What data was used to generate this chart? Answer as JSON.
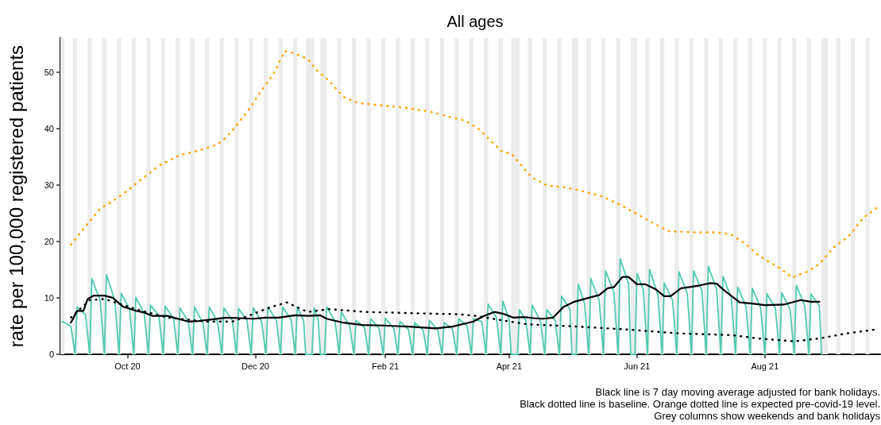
{
  "chart_data": {
    "type": "line",
    "title": "All ages",
    "ylabel": "rate per 100,000 registered patients",
    "xlim": [
      "2020-08-30",
      "2021-09-25"
    ],
    "xticks": [
      {
        "value": "2020-10-01",
        "label": "Oct 20"
      },
      {
        "value": "2020-12-01",
        "label": "Dec 20"
      },
      {
        "value": "2021-02-01",
        "label": "Feb 21"
      },
      {
        "value": "2021-04-01",
        "label": "Apr 21"
      },
      {
        "value": "2021-06-01",
        "label": "Jun 21"
      },
      {
        "value": "2021-08-01",
        "label": "Aug 21"
      }
    ],
    "ylim": [
      0,
      56
    ],
    "yticks": [
      0,
      10,
      20,
      30,
      40,
      50
    ],
    "grid": false,
    "marker": "none",
    "series": [
      {
        "color": "#4fcab2",
        "line_style": "solid",
        "x": [
          "2020-08-31",
          "2020-09-04",
          "2020-09-06",
          "2020-09-07",
          "2020-09-11",
          "2020-09-13",
          "2020-09-14",
          "2020-09-18",
          "2020-09-20",
          "2020-09-21",
          "2020-09-25",
          "2020-09-27",
          "2020-09-28",
          "2020-10-02",
          "2020-10-04",
          "2020-10-05",
          "2020-10-09",
          "2020-10-11",
          "2020-10-12",
          "2020-10-16",
          "2020-10-18",
          "2020-10-19",
          "2020-10-23",
          "2020-10-25",
          "2020-10-26",
          "2020-10-30",
          "2020-11-01",
          "2020-11-02",
          "2020-11-06",
          "2020-11-08",
          "2020-11-09",
          "2020-11-13",
          "2020-11-15",
          "2020-11-16",
          "2020-11-20",
          "2020-11-22",
          "2020-11-23",
          "2020-11-27",
          "2020-11-29",
          "2020-11-30",
          "2020-12-04",
          "2020-12-06",
          "2020-12-07",
          "2020-12-11",
          "2020-12-13",
          "2020-12-14",
          "2020-12-18",
          "2020-12-20",
          "2020-12-21",
          "2020-12-24",
          "2020-12-25",
          "2020-12-28",
          "2020-12-29",
          "2020-12-31",
          "2021-01-01",
          "2021-01-03",
          "2021-01-04",
          "2021-01-08",
          "2021-01-10",
          "2021-01-11",
          "2021-01-15",
          "2021-01-17",
          "2021-01-18",
          "2021-01-22",
          "2021-01-24",
          "2021-01-25",
          "2021-01-29",
          "2021-01-31",
          "2021-02-01",
          "2021-02-05",
          "2021-02-07",
          "2021-02-08",
          "2021-02-12",
          "2021-02-14",
          "2021-02-15",
          "2021-02-19",
          "2021-02-21",
          "2021-02-22",
          "2021-02-26",
          "2021-02-28",
          "2021-03-01",
          "2021-03-05",
          "2021-03-07",
          "2021-03-08",
          "2021-03-12",
          "2021-03-14",
          "2021-03-15",
          "2021-03-19",
          "2021-03-21",
          "2021-03-22",
          "2021-03-26",
          "2021-03-28",
          "2021-03-29",
          "2021-04-01",
          "2021-04-02",
          "2021-04-05",
          "2021-04-06",
          "2021-04-09",
          "2021-04-11",
          "2021-04-12",
          "2021-04-16",
          "2021-04-18",
          "2021-04-19",
          "2021-04-23",
          "2021-04-25",
          "2021-04-26",
          "2021-04-30",
          "2021-05-01",
          "2021-05-03",
          "2021-05-04",
          "2021-05-07",
          "2021-05-09",
          "2021-05-10",
          "2021-05-14",
          "2021-05-16",
          "2021-05-17",
          "2021-05-21",
          "2021-05-23",
          "2021-05-24",
          "2021-05-28",
          "2021-05-29",
          "2021-05-31",
          "2021-06-01",
          "2021-06-04",
          "2021-06-06",
          "2021-06-07",
          "2021-06-11",
          "2021-06-13",
          "2021-06-14",
          "2021-06-18",
          "2021-06-20",
          "2021-06-21",
          "2021-06-25",
          "2021-06-27",
          "2021-06-28",
          "2021-07-02",
          "2021-07-04",
          "2021-07-05",
          "2021-07-09",
          "2021-07-11",
          "2021-07-12",
          "2021-07-16",
          "2021-07-18",
          "2021-07-19",
          "2021-07-23",
          "2021-07-25",
          "2021-07-26",
          "2021-07-30",
          "2021-08-01",
          "2021-08-02",
          "2021-08-06",
          "2021-08-08",
          "2021-08-09",
          "2021-08-13",
          "2021-08-15",
          "2021-08-16",
          "2021-08-20",
          "2021-08-22",
          "2021-08-23",
          "2021-08-27",
          "2021-08-28"
        ],
        "values": [
          5.8,
          5.0,
          0,
          8.4,
          7.0,
          0,
          13.4,
          9.5,
          0,
          14.1,
          9.5,
          0,
          10.8,
          8.0,
          0,
          10.1,
          7.2,
          0,
          8.7,
          6.8,
          0,
          8.5,
          6.3,
          0,
          8.2,
          5.8,
          0,
          8.4,
          5.5,
          0,
          8.4,
          5.6,
          0,
          8.2,
          6.0,
          0,
          8.1,
          6.0,
          0,
          8.2,
          5.8,
          0,
          8.4,
          6.0,
          0,
          8.4,
          6.2,
          0,
          8.4,
          6.0,
          0,
          0,
          8.2,
          6.0,
          0,
          0,
          8.4,
          5.8,
          0,
          7.5,
          5.0,
          0,
          6.0,
          4.8,
          0,
          6.3,
          4.6,
          0,
          6.4,
          4.6,
          0,
          5.8,
          4.4,
          0,
          5.6,
          4.3,
          0,
          6.0,
          4.3,
          0,
          5.6,
          4.5,
          0,
          6.3,
          5.0,
          0,
          6.3,
          5.8,
          0,
          8.9,
          6.5,
          0,
          9.4,
          6.2,
          0,
          0,
          7.9,
          6.0,
          0,
          8.7,
          5.8,
          0,
          7.9,
          6.0,
          0,
          10.3,
          8.0,
          0,
          0,
          12.4,
          9.0,
          0,
          13.4,
          9.5,
          0,
          14.8,
          11.0,
          0,
          16.9,
          12.5,
          0,
          0,
          14.3,
          11.5,
          0,
          15.0,
          10.5,
          0,
          12.6,
          9.5,
          0,
          14.6,
          10.8,
          0,
          14.8,
          11.2,
          0,
          15.6,
          11.5,
          0,
          13.8,
          10.0,
          0,
          11.9,
          8.5,
          0,
          11.7,
          8.2,
          0,
          10.7,
          8.2,
          0,
          10.9,
          8.0,
          0,
          12.2,
          8.6,
          0,
          10.7,
          8.5,
          0
        ]
      },
      {
        "color": "#000000",
        "line_style": "solid",
        "x": [
          "2020-09-04",
          "2020-09-07",
          "2020-09-10",
          "2020-09-12",
          "2020-09-15",
          "2020-09-20",
          "2020-09-24",
          "2020-09-29",
          "2020-10-01",
          "2020-10-05",
          "2020-10-09",
          "2020-10-13",
          "2020-10-20",
          "2020-10-25",
          "2020-10-30",
          "2020-11-04",
          "2020-11-11",
          "2020-11-17",
          "2020-11-24",
          "2020-11-30",
          "2020-12-06",
          "2020-12-12",
          "2020-12-20",
          "2020-12-26",
          "2021-01-01",
          "2021-01-04",
          "2021-01-12",
          "2021-01-21",
          "2021-01-31",
          "2021-02-12",
          "2021-02-25",
          "2021-03-05",
          "2021-03-15",
          "2021-03-20",
          "2021-03-25",
          "2021-03-29",
          "2021-04-03",
          "2021-04-08",
          "2021-04-13",
          "2021-04-17",
          "2021-04-22",
          "2021-04-27",
          "2021-05-02",
          "2021-05-09",
          "2021-05-14",
          "2021-05-18",
          "2021-05-21",
          "2021-05-25",
          "2021-05-28",
          "2021-06-01",
          "2021-06-05",
          "2021-06-10",
          "2021-06-14",
          "2021-06-17",
          "2021-06-22",
          "2021-06-26",
          "2021-07-01",
          "2021-07-06",
          "2021-07-09",
          "2021-07-13",
          "2021-07-20",
          "2021-07-26",
          "2021-08-01",
          "2021-08-10",
          "2021-08-18",
          "2021-08-23",
          "2021-08-27"
        ],
        "values": [
          5.6,
          7.7,
          7.7,
          9.8,
          10.4,
          10.4,
          10.0,
          8.4,
          8.2,
          7.7,
          7.4,
          6.8,
          6.8,
          6.3,
          5.8,
          5.9,
          6.2,
          6.5,
          6.4,
          6.3,
          6.5,
          6.5,
          6.9,
          6.8,
          6.9,
          6.3,
          5.6,
          5.2,
          5.1,
          4.9,
          4.6,
          4.9,
          5.8,
          6.8,
          7.5,
          7.2,
          6.5,
          6.6,
          6.4,
          6.3,
          6.5,
          8.4,
          9.3,
          10.0,
          10.5,
          11.7,
          11.9,
          13.7,
          13.7,
          12.4,
          12.4,
          11.5,
          10.3,
          10.3,
          11.7,
          11.9,
          12.2,
          12.6,
          12.5,
          11.2,
          9.2,
          9.0,
          8.7,
          8.8,
          9.6,
          9.3,
          9.3
        ]
      },
      {
        "color": "#000000",
        "line_style": "dotted",
        "x": [
          "2020-09-04",
          "2020-09-13",
          "2020-09-20",
          "2020-10-05",
          "2020-10-20",
          "2020-10-28",
          "2020-11-08",
          "2020-11-20",
          "2020-11-27",
          "2020-12-01",
          "2020-12-08",
          "2020-12-16",
          "2020-12-20",
          "2020-12-26",
          "2021-01-05",
          "2021-01-23",
          "2021-02-23",
          "2021-03-08",
          "2021-03-16",
          "2021-03-21",
          "2021-03-29",
          "2021-04-10",
          "2021-04-29",
          "2021-05-27",
          "2021-06-21",
          "2021-07-16",
          "2021-07-29",
          "2021-08-15",
          "2021-08-27",
          "2021-09-09",
          "2021-09-23"
        ],
        "values": [
          6.5,
          9.6,
          9.8,
          8.0,
          6.5,
          6.2,
          5.8,
          5.8,
          6.7,
          7.3,
          8.3,
          9.2,
          8.5,
          7.5,
          8.0,
          7.5,
          7.2,
          7.1,
          6.8,
          6.5,
          6.0,
          5.3,
          5.0,
          4.4,
          3.7,
          3.4,
          2.8,
          2.3,
          2.8,
          3.7,
          4.4
        ]
      },
      {
        "color": "#ffa500",
        "line_style": "dotted",
        "x": [
          "2020-09-04",
          "2020-09-11",
          "2020-09-18",
          "2020-09-25",
          "2020-10-01",
          "2020-10-07",
          "2020-10-16",
          "2020-10-26",
          "2020-11-03",
          "2020-11-11",
          "2020-11-15",
          "2020-11-20",
          "2020-11-27",
          "2020-12-03",
          "2020-12-10",
          "2020-12-15",
          "2020-12-19",
          "2020-12-26",
          "2020-12-30",
          "2021-01-05",
          "2021-01-12",
          "2021-01-19",
          "2021-01-30",
          "2021-02-10",
          "2021-02-22",
          "2021-03-04",
          "2021-03-11",
          "2021-03-18",
          "2021-03-23",
          "2021-03-29",
          "2021-04-02",
          "2021-04-07",
          "2021-04-12",
          "2021-04-19",
          "2021-04-27",
          "2021-05-04",
          "2021-05-15",
          "2021-05-25",
          "2021-06-05",
          "2021-06-12",
          "2021-06-16",
          "2021-06-28",
          "2021-07-09",
          "2021-07-16",
          "2021-07-23",
          "2021-07-29",
          "2021-08-08",
          "2021-08-14",
          "2021-08-21",
          "2021-08-27",
          "2021-09-03",
          "2021-09-10",
          "2021-09-17",
          "2021-09-24"
        ],
        "values": [
          19.4,
          22.7,
          25.8,
          27.4,
          29.0,
          30.8,
          33.4,
          35.3,
          36.0,
          36.9,
          37.7,
          39.6,
          42.9,
          46.2,
          49.9,
          53.7,
          53.4,
          52.3,
          50.4,
          48.5,
          45.6,
          44.5,
          44.1,
          43.7,
          43.0,
          42.0,
          41.4,
          39.8,
          37.9,
          35.8,
          35.6,
          33.4,
          31.3,
          29.9,
          29.6,
          29.1,
          28.0,
          26.3,
          24.0,
          22.6,
          21.8,
          21.6,
          21.6,
          21.2,
          19.5,
          17.5,
          15.3,
          13.6,
          14.6,
          16.0,
          19.0,
          20.9,
          24.2,
          26.1
        ]
      }
    ],
    "bands": [
      {
        "axis": "x",
        "from": "2020-08-30",
        "to": "2020-09-01",
        "color": "#ececec"
      },
      {
        "axis": "x",
        "from": "2020-09-05",
        "to": "2020-09-07",
        "color": "#ececec"
      },
      {
        "axis": "x",
        "from": "2020-09-12",
        "to": "2020-09-14",
        "color": "#ececec"
      },
      {
        "axis": "x",
        "from": "2020-09-19",
        "to": "2020-09-21",
        "color": "#ececec"
      },
      {
        "axis": "x",
        "from": "2020-09-26",
        "to": "2020-09-28",
        "color": "#ececec"
      },
      {
        "axis": "x",
        "from": "2020-10-03",
        "to": "2020-10-05",
        "color": "#ececec"
      },
      {
        "axis": "x",
        "from": "2020-10-10",
        "to": "2020-10-12",
        "color": "#ececec"
      },
      {
        "axis": "x",
        "from": "2020-10-17",
        "to": "2020-10-19",
        "color": "#ececec"
      },
      {
        "axis": "x",
        "from": "2020-10-24",
        "to": "2020-10-26",
        "color": "#ececec"
      },
      {
        "axis": "x",
        "from": "2020-10-31",
        "to": "2020-11-02",
        "color": "#ececec"
      },
      {
        "axis": "x",
        "from": "2020-11-07",
        "to": "2020-11-09",
        "color": "#ececec"
      },
      {
        "axis": "x",
        "from": "2020-11-14",
        "to": "2020-11-16",
        "color": "#ececec"
      },
      {
        "axis": "x",
        "from": "2020-11-21",
        "to": "2020-11-23",
        "color": "#ececec"
      },
      {
        "axis": "x",
        "from": "2020-11-28",
        "to": "2020-11-30",
        "color": "#ececec"
      },
      {
        "axis": "x",
        "from": "2020-12-05",
        "to": "2020-12-07",
        "color": "#ececec"
      },
      {
        "axis": "x",
        "from": "2020-12-12",
        "to": "2020-12-14",
        "color": "#ececec"
      },
      {
        "axis": "x",
        "from": "2020-12-19",
        "to": "2020-12-21",
        "color": "#ececec"
      },
      {
        "axis": "x",
        "from": "2020-12-25",
        "to": "2020-12-29",
        "color": "#ececec"
      },
      {
        "axis": "x",
        "from": "2021-01-01",
        "to": "2021-01-04",
        "color": "#ececec"
      },
      {
        "axis": "x",
        "from": "2021-01-09",
        "to": "2021-01-11",
        "color": "#ececec"
      },
      {
        "axis": "x",
        "from": "2021-01-16",
        "to": "2021-01-18",
        "color": "#ececec"
      },
      {
        "axis": "x",
        "from": "2021-01-23",
        "to": "2021-01-25",
        "color": "#ececec"
      },
      {
        "axis": "x",
        "from": "2021-01-30",
        "to": "2021-02-01",
        "color": "#ececec"
      },
      {
        "axis": "x",
        "from": "2021-02-06",
        "to": "2021-02-08",
        "color": "#ececec"
      },
      {
        "axis": "x",
        "from": "2021-02-13",
        "to": "2021-02-15",
        "color": "#ececec"
      },
      {
        "axis": "x",
        "from": "2021-02-20",
        "to": "2021-02-22",
        "color": "#ececec"
      },
      {
        "axis": "x",
        "from": "2021-02-27",
        "to": "2021-03-01",
        "color": "#ececec"
      },
      {
        "axis": "x",
        "from": "2021-03-06",
        "to": "2021-03-08",
        "color": "#ececec"
      },
      {
        "axis": "x",
        "from": "2021-03-13",
        "to": "2021-03-15",
        "color": "#ececec"
      },
      {
        "axis": "x",
        "from": "2021-03-20",
        "to": "2021-03-22",
        "color": "#ececec"
      },
      {
        "axis": "x",
        "from": "2021-03-27",
        "to": "2021-03-29",
        "color": "#ececec"
      },
      {
        "axis": "x",
        "from": "2021-04-02",
        "to": "2021-04-06",
        "color": "#ececec"
      },
      {
        "axis": "x",
        "from": "2021-04-10",
        "to": "2021-04-12",
        "color": "#ececec"
      },
      {
        "axis": "x",
        "from": "2021-04-17",
        "to": "2021-04-19",
        "color": "#ececec"
      },
      {
        "axis": "x",
        "from": "2021-04-24",
        "to": "2021-04-26",
        "color": "#ececec"
      },
      {
        "axis": "x",
        "from": "2021-05-01",
        "to": "2021-05-04",
        "color": "#ececec"
      },
      {
        "axis": "x",
        "from": "2021-05-08",
        "to": "2021-05-10",
        "color": "#ececec"
      },
      {
        "axis": "x",
        "from": "2021-05-15",
        "to": "2021-05-17",
        "color": "#ececec"
      },
      {
        "axis": "x",
        "from": "2021-05-22",
        "to": "2021-05-24",
        "color": "#ececec"
      },
      {
        "axis": "x",
        "from": "2021-05-29",
        "to": "2021-06-01",
        "color": "#ececec"
      },
      {
        "axis": "x",
        "from": "2021-06-05",
        "to": "2021-06-07",
        "color": "#ececec"
      },
      {
        "axis": "x",
        "from": "2021-06-12",
        "to": "2021-06-14",
        "color": "#ececec"
      },
      {
        "axis": "x",
        "from": "2021-06-19",
        "to": "2021-06-21",
        "color": "#ececec"
      },
      {
        "axis": "x",
        "from": "2021-06-26",
        "to": "2021-06-28",
        "color": "#ececec"
      },
      {
        "axis": "x",
        "from": "2021-07-03",
        "to": "2021-07-05",
        "color": "#ececec"
      },
      {
        "axis": "x",
        "from": "2021-07-10",
        "to": "2021-07-12",
        "color": "#ececec"
      },
      {
        "axis": "x",
        "from": "2021-07-17",
        "to": "2021-07-19",
        "color": "#ececec"
      },
      {
        "axis": "x",
        "from": "2021-07-24",
        "to": "2021-07-26",
        "color": "#ececec"
      },
      {
        "axis": "x",
        "from": "2021-07-31",
        "to": "2021-08-02",
        "color": "#ececec"
      },
      {
        "axis": "x",
        "from": "2021-08-07",
        "to": "2021-08-09",
        "color": "#ececec"
      },
      {
        "axis": "x",
        "from": "2021-08-14",
        "to": "2021-08-16",
        "color": "#ececec"
      },
      {
        "axis": "x",
        "from": "2021-08-21",
        "to": "2021-08-23",
        "color": "#ececec"
      },
      {
        "axis": "x",
        "from": "2021-08-28",
        "to": "2021-08-31",
        "color": "#ececec"
      },
      {
        "axis": "x",
        "from": "2021-09-04",
        "to": "2021-09-06",
        "color": "#ececec"
      },
      {
        "axis": "x",
        "from": "2021-09-11",
        "to": "2021-09-13",
        "color": "#ececec"
      },
      {
        "axis": "x",
        "from": "2021-09-18",
        "to": "2021-09-20",
        "color": "#ececec"
      }
    ],
    "annotations": [
      "Black line is 7 day moving average adjusted for bank holidays.",
      "Black dotted line is baseline. Orange dotted line is expected pre-covid-19 level.",
      "Grey columns show weekends and bank holidays"
    ]
  }
}
